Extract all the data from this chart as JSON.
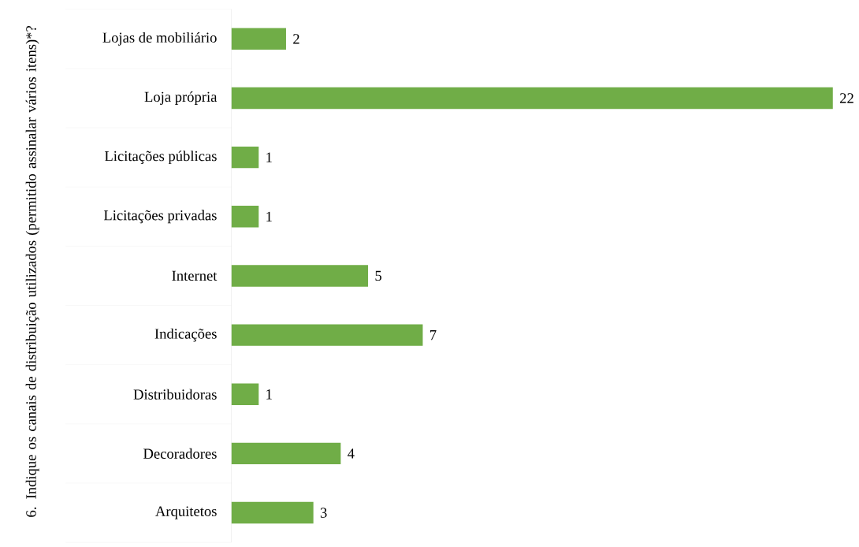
{
  "chart_data": {
    "type": "bar",
    "orientation": "horizontal",
    "ylabel": "6. Indique os canais de distribuição utilizados (permitido assinalar vários itens)*?",
    "categories": [
      "Lojas de mobiliário",
      "Loja própria",
      "Licitações públicas",
      "Licitações privadas",
      "Internet",
      "Indicações",
      "Distribuidoras",
      "Decoradores",
      "Arquitetos"
    ],
    "values": [
      2,
      22,
      1,
      1,
      5,
      7,
      1,
      4,
      3
    ],
    "color": "#70ad47",
    "data_labels": true
  }
}
